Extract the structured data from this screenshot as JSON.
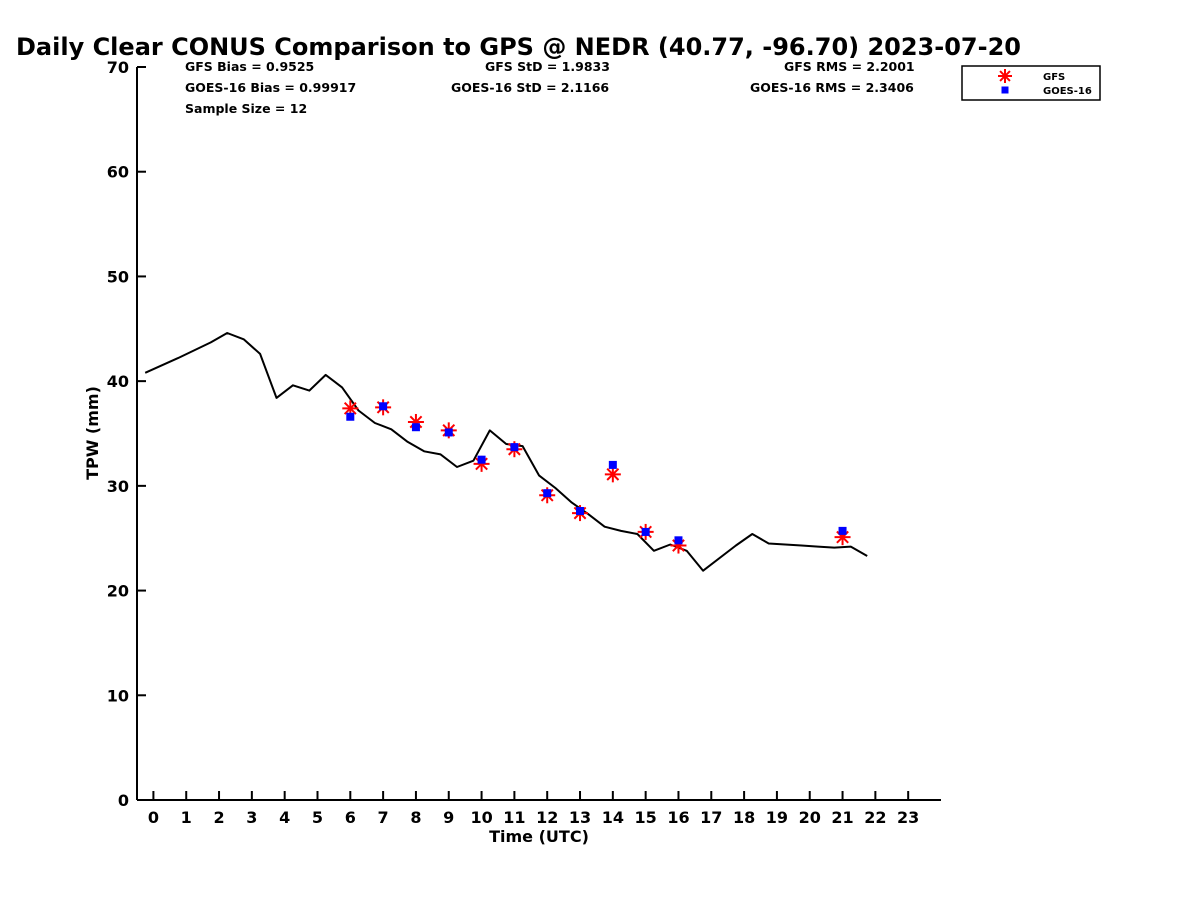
{
  "chart_data": {
    "type": "scatter",
    "title": "Daily Clear CONUS Comparison to GPS @ NEDR (40.77, -96.70) 2023-07-20",
    "xlabel": "Time (UTC)",
    "ylabel": "TPW (mm)",
    "xlim": [
      -0.5,
      24.0
    ],
    "ylim": [
      0,
      70
    ],
    "xticks": [
      "0",
      "1",
      "2",
      "3",
      "4",
      "5",
      "6",
      "7",
      "8",
      "9",
      "10",
      "11",
      "12",
      "13",
      "14",
      "15",
      "16",
      "17",
      "18",
      "19",
      "20",
      "21",
      "22",
      "23"
    ],
    "yticks": [
      "0",
      "10",
      "20",
      "30",
      "40",
      "50",
      "60",
      "70"
    ],
    "grid": false,
    "legend_position": "top-right",
    "stats": {
      "gfs_bias": "GFS Bias = 0.9525",
      "goes_bias": "GOES-16 Bias = 0.99917",
      "sample_size": "Sample Size = 12",
      "gfs_std": "GFS StD = 1.9833",
      "goes_std": "GOES-16 StD = 2.1166",
      "gfs_rms": "GFS RMS = 2.2001",
      "goes_rms": "GOES-16 RMS = 2.3406"
    },
    "line": {
      "color": "#000000",
      "x": [
        -0.25,
        0.75,
        1.75,
        2.25,
        2.75,
        3.25,
        3.75,
        4.25,
        4.75,
        5.25,
        5.75,
        6.25,
        6.75,
        7.25,
        7.75,
        8.25,
        8.75,
        9.25,
        9.75,
        10.25,
        10.75,
        11.25,
        11.75,
        12.25,
        12.75,
        13.25,
        13.75,
        14.25,
        14.75,
        15.25,
        15.75,
        16.25,
        16.75,
        17.75,
        18.25,
        18.75,
        19.25,
        19.75,
        20.25,
        20.75,
        21.25,
        21.75
      ],
      "y": [
        40.8,
        42.2,
        43.7,
        44.6,
        44.0,
        42.6,
        38.4,
        39.6,
        39.1,
        40.6,
        39.4,
        37.2,
        36.0,
        35.4,
        34.2,
        33.3,
        33.0,
        31.8,
        32.4,
        35.3,
        34.0,
        33.8,
        31.0,
        29.8,
        28.4,
        27.3,
        26.1,
        25.7,
        25.4,
        23.8,
        24.4,
        23.8,
        21.9,
        24.3,
        25.4,
        24.5,
        24.4,
        24.3,
        24.2,
        24.1,
        24.2,
        23.3
      ]
    },
    "series": [
      {
        "name": "GFS",
        "marker": "asterisk",
        "color": "#ff0000",
        "x": [
          6,
          7,
          8,
          9,
          10,
          11,
          12,
          13,
          14,
          15,
          16,
          21
        ],
        "y": [
          37.4,
          37.5,
          36.1,
          35.3,
          32.1,
          33.5,
          29.1,
          27.4,
          31.1,
          25.6,
          24.3,
          25.1
        ]
      },
      {
        "name": "GOES-16",
        "marker": "square",
        "color": "#0000ff",
        "x": [
          6,
          7,
          8,
          9,
          10,
          11,
          12,
          13,
          14,
          15,
          16,
          21
        ],
        "y": [
          36.6,
          37.6,
          35.6,
          35.1,
          32.5,
          33.7,
          29.3,
          27.6,
          32.0,
          25.6,
          24.8,
          25.7
        ]
      }
    ]
  }
}
